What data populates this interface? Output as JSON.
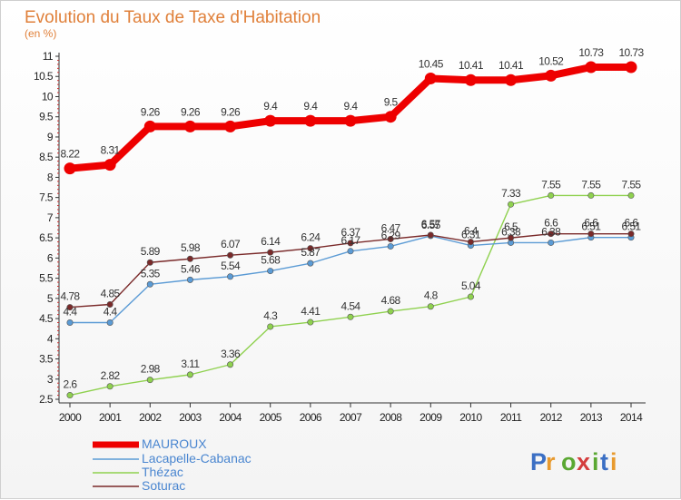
{
  "chart_data": {
    "type": "line",
    "title": "Evolution du Taux de Taxe d'Habitation",
    "subtitle": "(en %)",
    "x": [
      2000,
      2001,
      2002,
      2003,
      2004,
      2005,
      2006,
      2007,
      2008,
      2009,
      2010,
      2011,
      2012,
      2013,
      2014
    ],
    "x_labels": [
      "2000",
      "2001",
      "2002",
      "2003",
      "2004",
      "2005",
      "2006",
      "2007",
      "2008",
      "2009",
      "2010",
      "2011",
      "2012",
      "2013",
      "2014"
    ],
    "ylim": [
      2.5,
      11
    ],
    "y_ticks": [
      2.5,
      3,
      3.5,
      4,
      4.5,
      5,
      5.5,
      6,
      6.5,
      7,
      7.5,
      8,
      8.5,
      9,
      9.5,
      10,
      10.5,
      11
    ],
    "y_tick_labels": [
      "2.5",
      "3",
      "3.5",
      "4",
      "4.5",
      "5",
      "5.5",
      "6",
      "6.5",
      "7",
      "7.5",
      "8",
      "8.5",
      "9",
      "9.5",
      "10",
      "10.5",
      "11"
    ],
    "grid": false,
    "legend_position": "bottom-left",
    "series": [
      {
        "name": "MAUROUX",
        "color": "#ee0000",
        "values": [
          8.22,
          8.31,
          9.26,
          9.26,
          9.26,
          9.4,
          9.4,
          9.4,
          9.5,
          10.45,
          10.41,
          10.41,
          10.52,
          10.73,
          10.73
        ],
        "labels": [
          "8.22",
          "8.31",
          "9.26",
          "9.26",
          "9.26",
          "9.4",
          "9.4",
          "9.4",
          "9.5",
          "10.45",
          "10.41",
          "10.41",
          "10.52",
          "10.73",
          "10.73"
        ]
      },
      {
        "name": "Lacapelle-Cabanac",
        "color": "#5b9bd5",
        "values": [
          4.4,
          4.4,
          5.35,
          5.46,
          5.54,
          5.68,
          5.87,
          6.17,
          6.29,
          6.55,
          6.31,
          6.38,
          6.38,
          6.51,
          6.51
        ],
        "labels": [
          "4.4",
          "4.4",
          "5.35",
          "5.46",
          "5.54",
          "5.68",
          "5.87",
          "6.17",
          "6.29",
          "6.55",
          "6.31",
          "6.38",
          "6.38",
          "6.51",
          "6.51"
        ]
      },
      {
        "name": "Thézac",
        "color": "#8fd14f",
        "values": [
          2.6,
          2.82,
          2.98,
          3.11,
          3.36,
          4.3,
          4.41,
          4.54,
          4.68,
          4.8,
          5.04,
          7.33,
          7.55,
          7.55,
          7.55
        ],
        "labels": [
          "2.6",
          "2.82",
          "2.98",
          "3.11",
          "3.36",
          "4.3",
          "4.41",
          "4.54",
          "4.68",
          "4.8",
          "5.04",
          "7.33",
          "7.55",
          "7.55",
          "7.55"
        ]
      },
      {
        "name": "Soturac",
        "color": "#7a2a2a",
        "values": [
          4.78,
          4.85,
          5.89,
          5.98,
          6.07,
          6.14,
          6.24,
          6.37,
          6.47,
          6.57,
          6.4,
          6.5,
          6.6,
          6.6,
          6.6
        ],
        "labels": [
          "4.78",
          "4.85",
          "5.89",
          "5.98",
          "6.07",
          "6.14",
          "6.24",
          "6.37",
          "6.47",
          "6.57",
          "6.4",
          "6.5",
          "6.6",
          "6.6",
          "6.6"
        ]
      }
    ]
  },
  "logo": {
    "text": "Proxiti",
    "letters": [
      "P",
      "r",
      "o",
      "x",
      "i",
      "t",
      "i"
    ],
    "colors": [
      "#3b6fc4",
      "#e89a2e",
      "#5aa832",
      "#d43d3d",
      "#5aa832",
      "#3b6fc4",
      "#e89a2e"
    ]
  }
}
